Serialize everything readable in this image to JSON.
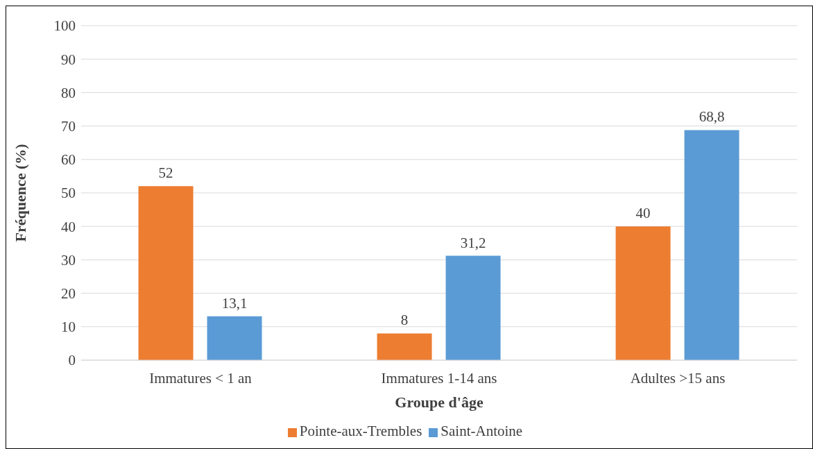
{
  "chart_data": {
    "type": "bar",
    "xlabel": "Groupe d'âge",
    "ylabel": "Fréquence (%)",
    "categories": [
      "Immatures < 1 an",
      "Immatures 1-14 ans",
      "Adultes >15 ans"
    ],
    "series": [
      {
        "name": "Pointe-aux-Trembles",
        "color": "#ed7d31",
        "values": [
          52,
          8,
          40
        ],
        "value_labels": [
          "52",
          "8",
          "40"
        ]
      },
      {
        "name": "Saint-Antoine",
        "color": "#5b9bd5",
        "values": [
          13.1,
          31.2,
          68.8
        ],
        "value_labels": [
          "13,1",
          "31,2",
          "68,8"
        ]
      }
    ],
    "ylim": [
      0,
      100
    ],
    "yticks": [
      0,
      10,
      20,
      30,
      40,
      50,
      60,
      70,
      80,
      90,
      100
    ],
    "grid": "y",
    "legend": "bottom"
  }
}
